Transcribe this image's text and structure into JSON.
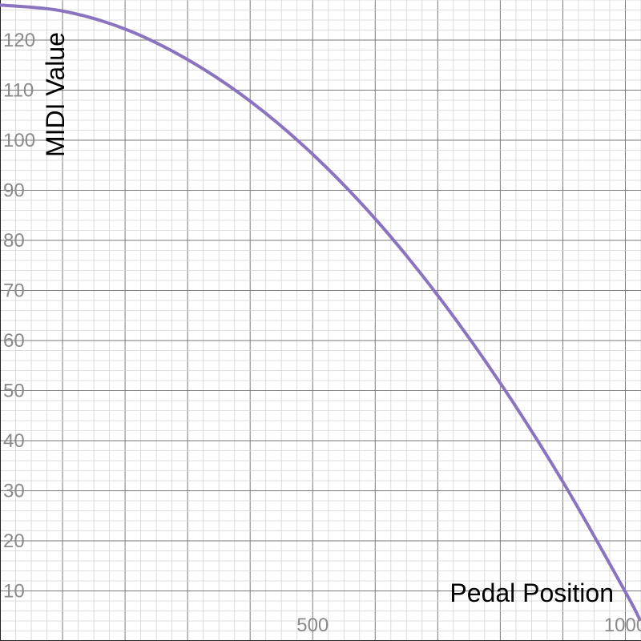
{
  "chart_data": {
    "type": "line",
    "xlabel": "Pedal Position",
    "ylabel": "MIDI Value",
    "xlim": [
      0,
      1025
    ],
    "ylim": [
      0,
      128
    ],
    "x_ticks": [
      500,
      1000
    ],
    "x_tick_labels": [
      "500",
      "1000"
    ],
    "y_ticks": [
      10,
      20,
      30,
      40,
      50,
      60,
      70,
      80,
      90,
      100,
      110,
      120
    ],
    "y_tick_labels": [
      "10",
      "20",
      "30",
      "40",
      "50",
      "60",
      "70",
      "80",
      "90",
      "100",
      "110",
      "120"
    ],
    "grid": true,
    "series": [
      {
        "color": "#8a74c0",
        "x": [
          0,
          100,
          200,
          300,
          400,
          500,
          600,
          700,
          800,
          900,
          1000,
          1023
        ],
        "y": [
          127,
          125.8,
          122.2,
          116.1,
          107.8,
          97.2,
          84.3,
          69.0,
          51.5,
          31.8,
          9.8,
          4.3
        ]
      }
    ]
  }
}
